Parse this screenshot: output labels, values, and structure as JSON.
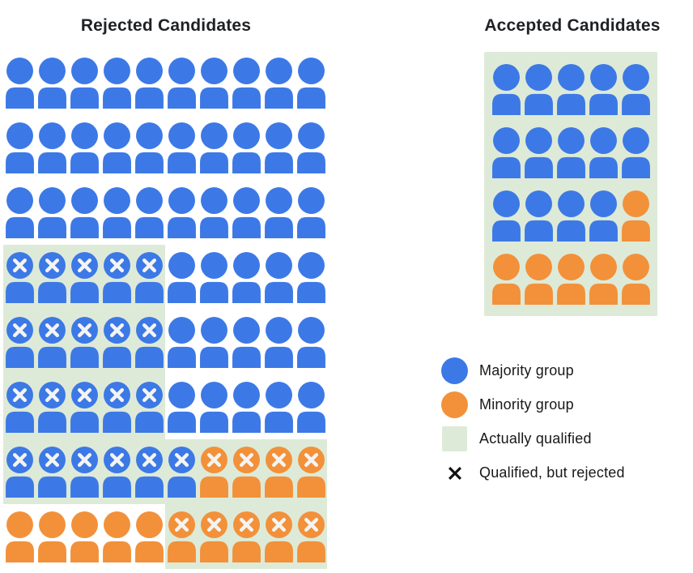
{
  "titles": {
    "rejected": "Rejected Candidates",
    "accepted": "Accepted Candidates"
  },
  "colors": {
    "majority_blue": "#3C79E6",
    "minority_orange": "#F2913A",
    "qualified_green": "#DEEAD8",
    "x_mark_on_person": "#F4F4F2",
    "x_mark_legend": "#111111"
  },
  "cell_code_key": {
    "b": "majority group person (blue)",
    "o": "minority group person (orange)",
    "x": "has X mark (qualified, but rejected)",
    "q": "on actually-qualified (green) background"
  },
  "rejected_grid": {
    "columns": 10,
    "rows": [
      [
        "b",
        "b",
        "b",
        "b",
        "b",
        "b",
        "b",
        "b",
        "b",
        "b"
      ],
      [
        "b",
        "b",
        "b",
        "b",
        "b",
        "b",
        "b",
        "b",
        "b",
        "b"
      ],
      [
        "b",
        "b",
        "b",
        "b",
        "b",
        "b",
        "b",
        "b",
        "b",
        "b"
      ],
      [
        "bxq",
        "bxq",
        "bxq",
        "bxq",
        "bxq",
        "b",
        "b",
        "b",
        "b",
        "b"
      ],
      [
        "bxq",
        "bxq",
        "bxq",
        "bxq",
        "bxq",
        "b",
        "b",
        "b",
        "b",
        "b"
      ],
      [
        "bxq",
        "bxq",
        "bxq",
        "bxq",
        "bxq",
        "b",
        "b",
        "b",
        "b",
        "b"
      ],
      [
        "bxq",
        "bxq",
        "bxq",
        "bxq",
        "bxq",
        "bxq",
        "oxq",
        "oxq",
        "oxq",
        "oxq"
      ],
      [
        "o",
        "o",
        "o",
        "o",
        "o",
        "oxq",
        "oxq",
        "oxq",
        "oxq",
        "oxq"
      ]
    ]
  },
  "accepted_grid": {
    "columns": 5,
    "rows": [
      [
        "bq",
        "bq",
        "bq",
        "bq",
        "bq"
      ],
      [
        "bq",
        "bq",
        "bq",
        "bq",
        "bq"
      ],
      [
        "bq",
        "bq",
        "bq",
        "bq",
        "oq"
      ],
      [
        "oq",
        "oq",
        "oq",
        "oq",
        "oq"
      ]
    ]
  },
  "legend": {
    "items": [
      {
        "swatch": "circle-majority",
        "label": "Majority group"
      },
      {
        "swatch": "circle-minority",
        "label": "Minority group"
      },
      {
        "swatch": "square-qualified",
        "label": "Actually qualified"
      },
      {
        "swatch": "x-mark",
        "label": "Qualified, but rejected"
      }
    ]
  }
}
